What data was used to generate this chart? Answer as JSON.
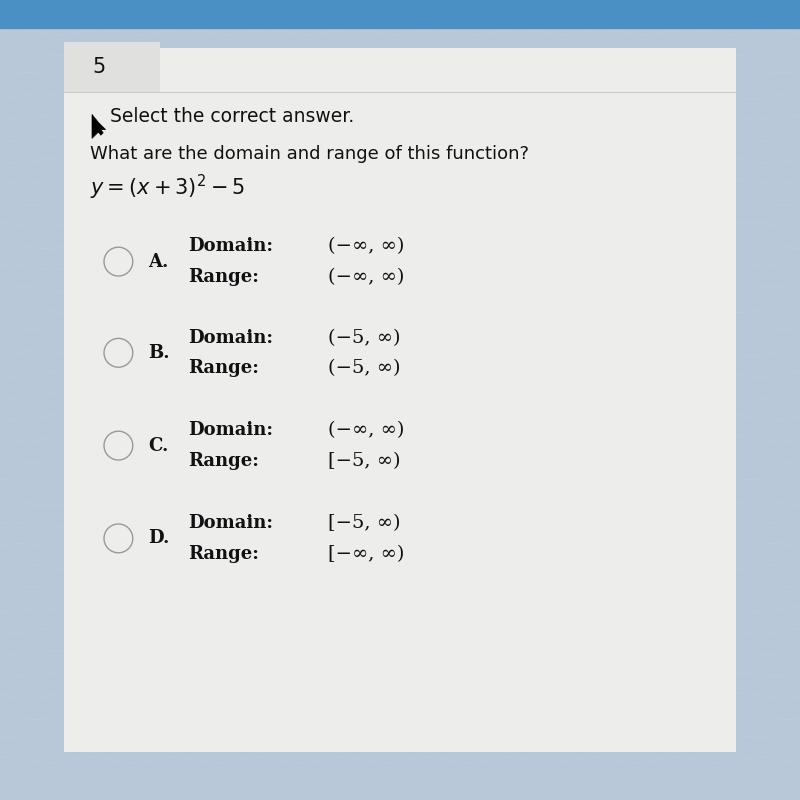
{
  "question_number": "5",
  "instruction": "Select the correct answer.",
  "question": "What are the domain and range of this function?",
  "function_text": "y = (x + 3)² – 5",
  "options": [
    {
      "label": "A.",
      "domain_label": "Domain:",
      "domain_val": "(−∞, ∞)",
      "range_label": "Range:",
      "range_val": "(−∞, ∞)"
    },
    {
      "label": "B.",
      "domain_label": "Domain:",
      "domain_val": "(−5, ∞)",
      "range_label": "Range:",
      "range_val": "(−5, ∞)"
    },
    {
      "label": "C.",
      "domain_label": "Domain:",
      "domain_val": "(−∞, ∞)",
      "range_label": "Range:",
      "range_val": "[−5, ∞)"
    },
    {
      "label": "D.",
      "domain_label": "Domain:",
      "domain_val": "[−5, ∞)",
      "range_label": "Range:",
      "range_val": "[−∞, ∞)"
    }
  ],
  "bg_top_color": "#4a90c4",
  "bg_main_color": "#b8c8d8",
  "card_color": "#ededec",
  "text_color": "#111111",
  "number_box_color": "#e0e0de",
  "circle_edge_color": "#999999",
  "figsize": [
    8.0,
    8.0
  ],
  "dpi": 100
}
